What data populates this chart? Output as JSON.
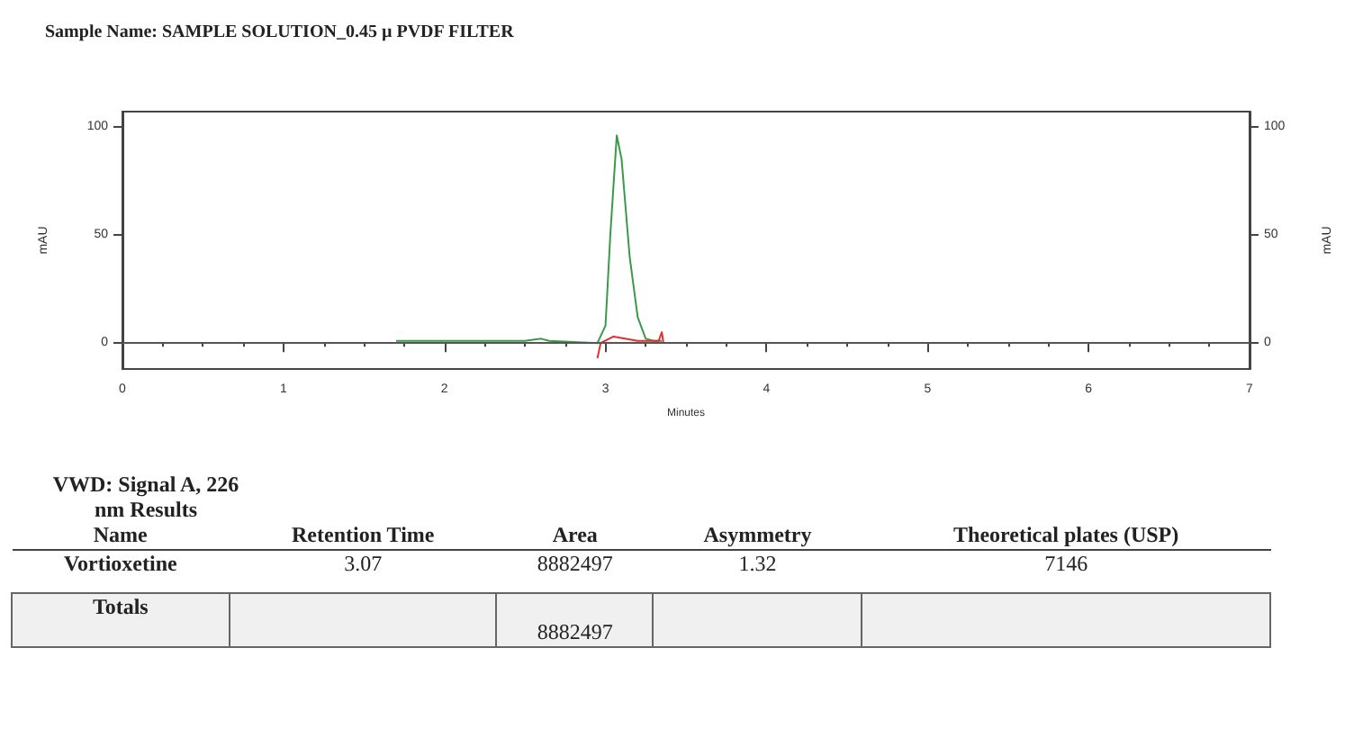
{
  "chart_data": {
    "type": "line",
    "title": "Sample Name: SAMPLE SOLUTION_0.45 µ PVDF FILTER",
    "xlabel": "Minutes",
    "ylabel": "mAU",
    "y2label": "mAU",
    "xlim": [
      0,
      7
    ],
    "xticks": [
      0,
      1,
      2,
      3,
      4,
      5,
      6,
      7
    ],
    "ylim": [
      -12,
      107
    ],
    "yticks": [
      0,
      50,
      100
    ],
    "y2lim": [
      -12,
      107
    ],
    "y2ticks": [
      0,
      50,
      100
    ],
    "grid": false,
    "marker": "none",
    "line_style": "solid",
    "ref_lines": [
      {
        "axis": "y",
        "value": 0,
        "color": "#555555"
      }
    ],
    "series": [
      {
        "color": "#3a9a4a",
        "x": [
          1.7,
          2.5,
          2.6,
          2.65,
          2.95,
          3.0,
          3.03,
          3.07,
          3.1,
          3.15,
          3.2,
          3.25,
          3.3,
          3.35
        ],
        "values": [
          1,
          1,
          2,
          1,
          0,
          8,
          50,
          96,
          85,
          40,
          12,
          2,
          1,
          1
        ]
      },
      {
        "color": "#e03030",
        "x": [
          2.95,
          2.97,
          3.05,
          3.2,
          3.3,
          3.33,
          3.35,
          3.36
        ],
        "values": [
          -7,
          0,
          3,
          1,
          1,
          1,
          5,
          0
        ]
      }
    ],
    "annotations": [
      "VWD: Signal A, 226 nm Results",
      "Name",
      "Retention Time",
      "Area",
      "Asymmetry",
      "Theoretical plates (USP)",
      "Vortioxetine",
      "3.07",
      "8882497",
      "1.32",
      "7146",
      "Totals",
      "8882497"
    ]
  }
}
